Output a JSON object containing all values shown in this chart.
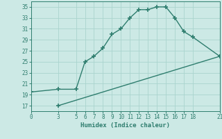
{
  "xlabel": "Humidex (Indice chaleur)",
  "upper_line_x": [
    0,
    3,
    5,
    6,
    7,
    8,
    9,
    10,
    11,
    12,
    13,
    14,
    15,
    16,
    17,
    18,
    21
  ],
  "upper_line_y": [
    19.5,
    20.0,
    20.0,
    25.0,
    26.0,
    27.5,
    30.0,
    31.0,
    33.0,
    34.5,
    34.5,
    35.0,
    35.0,
    33.0,
    30.5,
    29.5,
    26.0
  ],
  "lower_line_x": [
    3,
    21
  ],
  "lower_line_y": [
    17.0,
    26.0
  ],
  "xticks": [
    0,
    3,
    5,
    6,
    7,
    8,
    9,
    10,
    11,
    12,
    13,
    14,
    15,
    16,
    17,
    18,
    21
  ],
  "yticks": [
    17,
    19,
    21,
    23,
    25,
    27,
    29,
    31,
    33,
    35
  ],
  "xlim": [
    0,
    21
  ],
  "ylim": [
    16,
    36
  ],
  "line_color": "#2e7d6e",
  "bg_color": "#cce9e5",
  "grid_color": "#aad4ce",
  "marker": "+",
  "marker_size": 4,
  "line_width": 1.0,
  "tick_fontsize": 5.5,
  "label_fontsize": 6.5
}
